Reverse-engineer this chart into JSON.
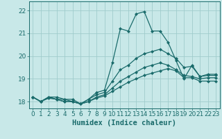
{
  "title": "",
  "xlabel": "Humidex (Indice chaleur)",
  "ylabel": "",
  "xlim": [
    -0.5,
    23.5
  ],
  "ylim": [
    17.7,
    22.4
  ],
  "yticks": [
    18,
    19,
    20,
    21,
    22
  ],
  "xticks": [
    0,
    1,
    2,
    3,
    4,
    5,
    6,
    7,
    8,
    9,
    10,
    11,
    12,
    13,
    14,
    15,
    16,
    17,
    18,
    19,
    20,
    21,
    22,
    23
  ],
  "background_color": "#c8e8e8",
  "grid_color": "#a0cccc",
  "line_color": "#1a6b6b",
  "lines": [
    {
      "x": [
        0,
        1,
        2,
        3,
        4,
        5,
        6,
        7,
        8,
        9,
        10,
        11,
        12,
        13,
        14,
        15,
        16,
        17,
        18,
        19,
        20,
        21,
        22,
        23
      ],
      "y": [
        18.2,
        18.0,
        18.2,
        18.2,
        18.1,
        18.1,
        17.9,
        18.1,
        18.4,
        18.5,
        19.7,
        21.2,
        21.1,
        21.85,
        21.95,
        21.1,
        21.1,
        20.6,
        19.8,
        19.0,
        19.6,
        19.1,
        19.2,
        19.2
      ],
      "marker": "D",
      "markersize": 2.0,
      "linewidth": 0.9
    },
    {
      "x": [
        0,
        1,
        2,
        3,
        4,
        5,
        6,
        7,
        8,
        9,
        10,
        11,
        12,
        13,
        14,
        15,
        16,
        17,
        18,
        19,
        20,
        21,
        22,
        23
      ],
      "y": [
        18.2,
        18.0,
        18.2,
        18.1,
        18.1,
        18.0,
        17.9,
        18.1,
        18.3,
        18.4,
        18.9,
        19.4,
        19.6,
        19.9,
        20.1,
        20.2,
        20.3,
        20.1,
        19.9,
        19.5,
        19.55,
        19.1,
        19.15,
        19.15
      ],
      "marker": "D",
      "markersize": 2.0,
      "linewidth": 0.9
    },
    {
      "x": [
        0,
        1,
        2,
        3,
        4,
        5,
        6,
        7,
        8,
        9,
        10,
        11,
        12,
        13,
        14,
        15,
        16,
        17,
        18,
        19,
        20,
        21,
        22,
        23
      ],
      "y": [
        18.2,
        18.0,
        18.2,
        18.1,
        18.0,
        18.0,
        17.9,
        18.0,
        18.2,
        18.3,
        18.6,
        18.9,
        19.1,
        19.3,
        19.5,
        19.6,
        19.7,
        19.6,
        19.4,
        19.15,
        19.1,
        19.0,
        19.05,
        19.05
      ],
      "marker": "D",
      "markersize": 2.0,
      "linewidth": 0.9
    },
    {
      "x": [
        0,
        1,
        2,
        3,
        4,
        5,
        6,
        7,
        8,
        9,
        10,
        11,
        12,
        13,
        14,
        15,
        16,
        17,
        18,
        19,
        20,
        21,
        22,
        23
      ],
      "y": [
        18.2,
        18.0,
        18.15,
        18.1,
        18.0,
        18.0,
        17.9,
        18.0,
        18.15,
        18.25,
        18.45,
        18.65,
        18.85,
        19.0,
        19.15,
        19.25,
        19.35,
        19.45,
        19.35,
        19.05,
        19.05,
        18.9,
        18.9,
        18.9
      ],
      "marker": "D",
      "markersize": 2.0,
      "linewidth": 0.9
    }
  ],
  "tick_fontsize": 6.5,
  "xlabel_fontsize": 7.5,
  "xlabel_fontweight": "bold"
}
